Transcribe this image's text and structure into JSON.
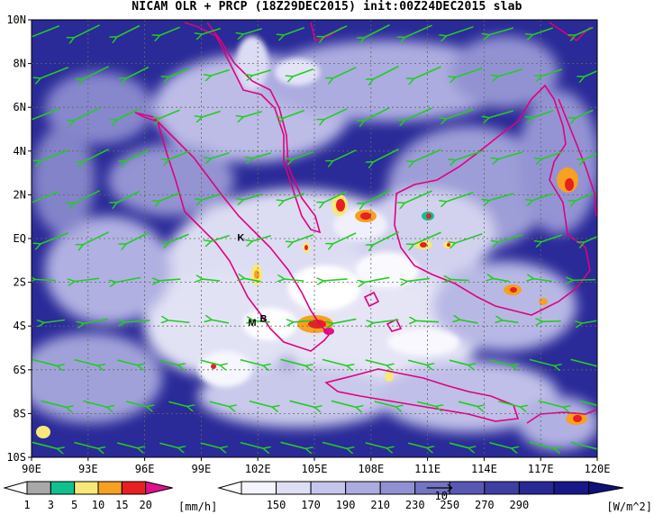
{
  "title": "NICAM OLR + PRCP (18Z29DEC2015) init:00Z24DEC2015 slab",
  "map": {
    "lat_labels": [
      "10N",
      "8N",
      "6N",
      "4N",
      "2N",
      "EQ",
      "2S",
      "4S",
      "6S",
      "8S",
      "10S"
    ],
    "lon_labels": [
      "90E",
      "93E",
      "96E",
      "99E",
      "102E",
      "105E",
      "108E",
      "111E",
      "114E",
      "117E",
      "120E"
    ],
    "lat_range": [
      -10,
      10
    ],
    "lon_range": [
      90,
      120
    ],
    "place_labels": [
      {
        "text": "K",
        "lon": 101.1,
        "lat": -0.1
      },
      {
        "text": "M",
        "lon": 101.7,
        "lat": -4.0
      },
      {
        "text": "B",
        "lon": 102.3,
        "lat": -3.8
      }
    ],
    "coastline_color": "#e0007f",
    "wind_vector_color": "#22cc22",
    "grid": "dashed"
  },
  "precip_colorbar": {
    "ticks": [
      "1",
      "3",
      "5",
      "10",
      "15",
      "20"
    ],
    "unit": "[mm/h]",
    "colors": [
      "#a8a8a8",
      "#10c090",
      "#f8e878",
      "#f8a020",
      "#e82020",
      "#e01090"
    ]
  },
  "olr_colorbar": {
    "ticks": [
      "150",
      "170",
      "190",
      "210",
      "230",
      "250",
      "270",
      "290"
    ],
    "unit": "[W/m^2]",
    "colors": [
      "#f4f4fc",
      "#dedef4",
      "#c6c6ec",
      "#acace0",
      "#9090d2",
      "#7474c4",
      "#5858b4",
      "#3e3ea4",
      "#282896",
      "#181888",
      "#10107c"
    ],
    "reference_vector_label": "10"
  }
}
